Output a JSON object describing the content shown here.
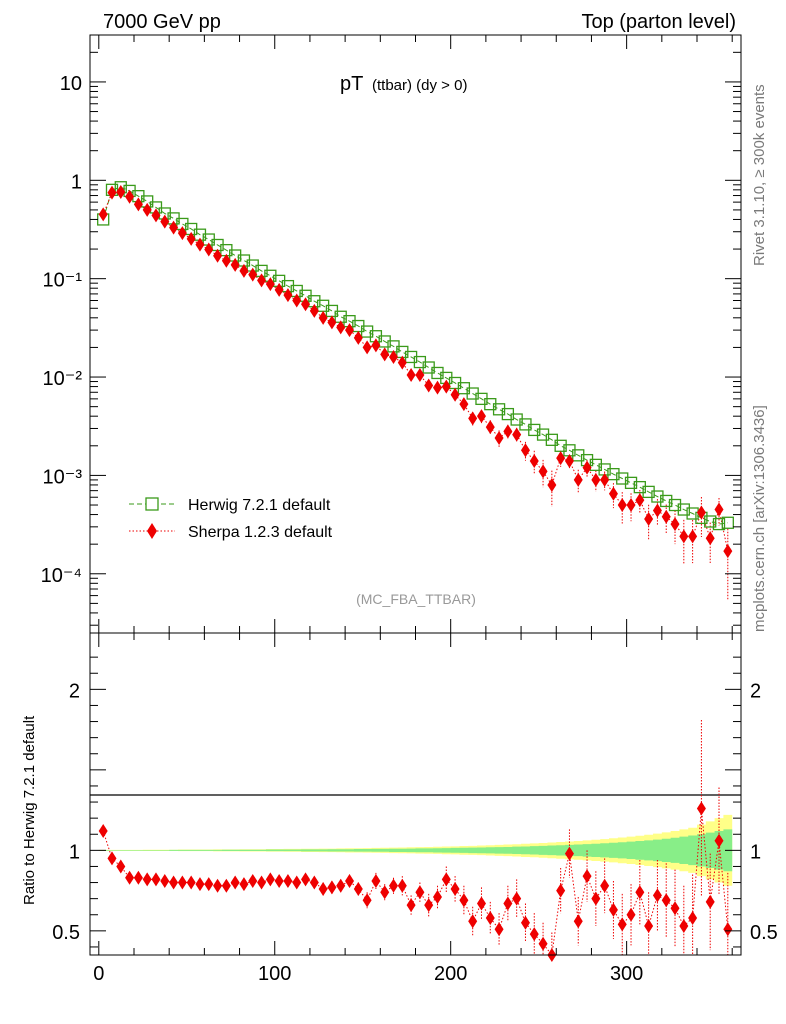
{
  "header": {
    "left_title": "7000 GeV pp",
    "right_title": "Top (parton level)"
  },
  "side_labels": {
    "rivet": "Rivet 3.1.10, ≥ 300k events",
    "mcplots": "mcplots.cern.ch [arXiv:1306.3436]"
  },
  "chart_data": [
    {
      "type": "scatter",
      "title": "pT",
      "title_sub": "(ttbar) (dy > 0)",
      "analysis_tag": "(MC_FBA_TTBAR)",
      "xlabel": "",
      "ylabel": "",
      "yscale": "log",
      "xlim": [
        -5,
        365
      ],
      "ylim": [
        2.5e-05,
        30
      ],
      "x_ticks": [
        0,
        100,
        200,
        300
      ],
      "y_ticks": [
        {
          "value": 10,
          "label": "10"
        },
        {
          "value": 1,
          "label": "1"
        },
        {
          "value": 0.1,
          "label": "10⁻¹"
        },
        {
          "value": 0.01,
          "label": "10⁻²"
        },
        {
          "value": 0.001,
          "label": "10⁻³"
        },
        {
          "value": 0.0001,
          "label": "10⁻⁴"
        }
      ],
      "legend_position": "bottom-left",
      "series": [
        {
          "name": "Herwig 7.2.1 default",
          "color": "#3a9a1a",
          "marker": "open-square",
          "line": "dashed",
          "x": [
            2.5,
            7.5,
            12.5,
            17.5,
            22.5,
            27.5,
            32.5,
            37.5,
            42.5,
            47.5,
            52.5,
            57.5,
            62.5,
            67.5,
            72.5,
            77.5,
            82.5,
            87.5,
            92.5,
            97.5,
            102.5,
            107.5,
            112.5,
            117.5,
            122.5,
            127.5,
            132.5,
            137.5,
            142.5,
            147.5,
            152.5,
            157.5,
            162.5,
            167.5,
            172.5,
            177.5,
            182.5,
            187.5,
            192.5,
            197.5,
            202.5,
            207.5,
            212.5,
            217.5,
            222.5,
            227.5,
            232.5,
            237.5,
            242.5,
            247.5,
            252.5,
            257.5,
            262.5,
            267.5,
            272.5,
            277.5,
            282.5,
            287.5,
            292.5,
            297.5,
            302.5,
            307.5,
            312.5,
            317.5,
            322.5,
            327.5,
            332.5,
            337.5,
            342.5,
            347.5,
            352.5,
            357.5
          ],
          "y": [
            0.4,
            0.8,
            0.85,
            0.78,
            0.69,
            0.61,
            0.53,
            0.46,
            0.41,
            0.36,
            0.32,
            0.28,
            0.25,
            0.22,
            0.195,
            0.172,
            0.153,
            0.136,
            0.12,
            0.107,
            0.095,
            0.084,
            0.075,
            0.067,
            0.059,
            0.053,
            0.047,
            0.041,
            0.037,
            0.033,
            0.029,
            0.026,
            0.023,
            0.0205,
            0.018,
            0.016,
            0.0142,
            0.0125,
            0.011,
            0.0098,
            0.0087,
            0.0077,
            0.0068,
            0.006,
            0.0053,
            0.0047,
            0.0042,
            0.0037,
            0.0033,
            0.0029,
            0.0026,
            0.0023,
            0.002,
            0.0018,
            0.0016,
            0.00143,
            0.00128,
            0.00115,
            0.00103,
            0.00093,
            0.00084,
            0.00076,
            0.00068,
            0.00061,
            0.00055,
            0.0005,
            0.00045,
            0.00041,
            0.00037,
            0.00034,
            0.00032,
            0.00033
          ]
        },
        {
          "name": "Sherpa 1.2.3 default",
          "color": "#ee0000",
          "marker": "filled-diamond",
          "line": "dotted",
          "x": [
            2.5,
            7.5,
            12.5,
            17.5,
            22.5,
            27.5,
            32.5,
            37.5,
            42.5,
            47.5,
            52.5,
            57.5,
            62.5,
            67.5,
            72.5,
            77.5,
            82.5,
            87.5,
            92.5,
            97.5,
            102.5,
            107.5,
            112.5,
            117.5,
            122.5,
            127.5,
            132.5,
            137.5,
            142.5,
            147.5,
            152.5,
            157.5,
            162.5,
            167.5,
            172.5,
            177.5,
            182.5,
            187.5,
            192.5,
            197.5,
            202.5,
            207.5,
            212.5,
            217.5,
            222.5,
            227.5,
            232.5,
            237.5,
            242.5,
            247.5,
            252.5,
            257.5,
            262.5,
            267.5,
            272.5,
            277.5,
            282.5,
            287.5,
            292.5,
            297.5,
            302.5,
            307.5,
            312.5,
            317.5,
            322.5,
            327.5,
            332.5,
            337.5,
            342.5,
            347.5,
            352.5,
            357.5
          ],
          "y": [
            0.45,
            0.75,
            0.76,
            0.68,
            0.57,
            0.5,
            0.44,
            0.38,
            0.33,
            0.29,
            0.254,
            0.222,
            0.198,
            0.171,
            0.152,
            0.138,
            0.12,
            0.11,
            0.096,
            0.088,
            0.077,
            0.068,
            0.06,
            0.055,
            0.047,
            0.04,
            0.036,
            0.032,
            0.03,
            0.025,
            0.02,
            0.021,
            0.017,
            0.016,
            0.014,
            0.0105,
            0.0105,
            0.0082,
            0.0078,
            0.008,
            0.0066,
            0.0053,
            0.0038,
            0.004,
            0.0031,
            0.0024,
            0.0028,
            0.0026,
            0.0018,
            0.0014,
            0.0011,
            0.0008,
            0.0015,
            0.0014,
            0.0009,
            0.0012,
            0.0009,
            0.0009,
            0.00065,
            0.0005,
            0.0005,
            0.00056,
            0.00036,
            0.00044,
            0.00038,
            0.00032,
            0.00024,
            0.00024,
            0.00042,
            0.00023,
            0.00045,
            0.00017
          ]
        }
      ]
    },
    {
      "type": "scatter",
      "title": "",
      "xlabel": "",
      "ylabel": "Ratio to Herwig 7.2.1 default",
      "xlim": [
        -5,
        365
      ],
      "ylim": [
        0.35,
        2.35
      ],
      "x_ticks": [
        0,
        100,
        200,
        300
      ],
      "x_tick_labels": [
        "0",
        "100",
        "200",
        "300"
      ],
      "y_ticks": [
        0.5,
        1,
        2
      ],
      "y_tick_labels": [
        "0.5",
        "1",
        "2"
      ],
      "reference_line": 1,
      "band_half_width_yellow": [
        0.003,
        0.003,
        0.003,
        0.003,
        0.003,
        0.004,
        0.004,
        0.004,
        0.004,
        0.005,
        0.005,
        0.005,
        0.005,
        0.006,
        0.006,
        0.006,
        0.007,
        0.007,
        0.007,
        0.008,
        0.008,
        0.009,
        0.009,
        0.01,
        0.01,
        0.011,
        0.011,
        0.012,
        0.013,
        0.013,
        0.014,
        0.015,
        0.016,
        0.017,
        0.018,
        0.019,
        0.02,
        0.021,
        0.022,
        0.024,
        0.025,
        0.027,
        0.028,
        0.03,
        0.032,
        0.034,
        0.036,
        0.038,
        0.041,
        0.043,
        0.046,
        0.049,
        0.052,
        0.055,
        0.058,
        0.062,
        0.066,
        0.07,
        0.075,
        0.08,
        0.085,
        0.091,
        0.097,
        0.104,
        0.112,
        0.12,
        0.13,
        0.14,
        0.16,
        0.18,
        0.2,
        0.22
      ],
      "band_half_width_green": [
        0.002,
        0.002,
        0.002,
        0.002,
        0.002,
        0.002,
        0.002,
        0.002,
        0.003,
        0.003,
        0.003,
        0.003,
        0.003,
        0.003,
        0.004,
        0.004,
        0.004,
        0.004,
        0.004,
        0.005,
        0.005,
        0.005,
        0.005,
        0.006,
        0.006,
        0.006,
        0.007,
        0.007,
        0.007,
        0.008,
        0.008,
        0.009,
        0.009,
        0.01,
        0.01,
        0.011,
        0.012,
        0.012,
        0.013,
        0.014,
        0.015,
        0.016,
        0.017,
        0.018,
        0.019,
        0.02,
        0.021,
        0.023,
        0.024,
        0.026,
        0.028,
        0.03,
        0.032,
        0.034,
        0.036,
        0.039,
        0.041,
        0.044,
        0.047,
        0.05,
        0.054,
        0.058,
        0.062,
        0.067,
        0.072,
        0.078,
        0.085,
        0.092,
        0.1,
        0.11,
        0.12,
        0.13
      ],
      "series": [
        {
          "name": "Sherpa 1.2.3 default",
          "color": "#ee0000",
          "x": [
            2.5,
            7.5,
            12.5,
            17.5,
            22.5,
            27.5,
            32.5,
            37.5,
            42.5,
            47.5,
            52.5,
            57.5,
            62.5,
            67.5,
            72.5,
            77.5,
            82.5,
            87.5,
            92.5,
            97.5,
            102.5,
            107.5,
            112.5,
            117.5,
            122.5,
            127.5,
            132.5,
            137.5,
            142.5,
            147.5,
            152.5,
            157.5,
            162.5,
            167.5,
            172.5,
            177.5,
            182.5,
            187.5,
            192.5,
            197.5,
            202.5,
            207.5,
            212.5,
            217.5,
            222.5,
            227.5,
            232.5,
            237.5,
            242.5,
            247.5,
            252.5,
            257.5,
            262.5,
            267.5,
            272.5,
            277.5,
            282.5,
            287.5,
            292.5,
            297.5,
            302.5,
            307.5,
            312.5,
            317.5,
            322.5,
            327.5,
            332.5,
            337.5,
            342.5,
            347.5,
            352.5,
            357.5
          ],
          "ratio": [
            1.12,
            0.95,
            0.9,
            0.83,
            0.83,
            0.82,
            0.82,
            0.81,
            0.8,
            0.8,
            0.8,
            0.79,
            0.79,
            0.78,
            0.78,
            0.8,
            0.79,
            0.81,
            0.8,
            0.82,
            0.81,
            0.81,
            0.8,
            0.82,
            0.8,
            0.76,
            0.77,
            0.78,
            0.81,
            0.76,
            0.69,
            0.81,
            0.74,
            0.78,
            0.78,
            0.66,
            0.74,
            0.66,
            0.71,
            0.82,
            0.76,
            0.69,
            0.56,
            0.67,
            0.58,
            0.51,
            0.67,
            0.7,
            0.55,
            0.48,
            0.42,
            0.35,
            0.75,
            0.98,
            0.56,
            0.84,
            0.7,
            0.78,
            0.63,
            0.54,
            0.6,
            0.74,
            0.53,
            0.72,
            0.69,
            0.64,
            0.53,
            0.58,
            1.26,
            0.68,
            1.06,
            0.51
          ],
          "err": [
            0.02,
            0.02,
            0.02,
            0.02,
            0.02,
            0.02,
            0.02,
            0.02,
            0.02,
            0.02,
            0.02,
            0.02,
            0.02,
            0.02,
            0.03,
            0.03,
            0.03,
            0.03,
            0.03,
            0.03,
            0.03,
            0.03,
            0.03,
            0.03,
            0.03,
            0.04,
            0.04,
            0.04,
            0.04,
            0.04,
            0.05,
            0.05,
            0.05,
            0.05,
            0.06,
            0.06,
            0.06,
            0.07,
            0.07,
            0.08,
            0.08,
            0.09,
            0.09,
            0.1,
            0.1,
            0.1,
            0.11,
            0.12,
            0.12,
            0.13,
            0.13,
            0.14,
            0.14,
            0.15,
            0.15,
            0.16,
            0.17,
            0.17,
            0.18,
            0.19,
            0.19,
            0.2,
            0.21,
            0.22,
            0.23,
            0.24,
            0.25,
            0.27,
            0.55,
            0.3,
            0.33,
            0.35
          ]
        }
      ]
    }
  ]
}
